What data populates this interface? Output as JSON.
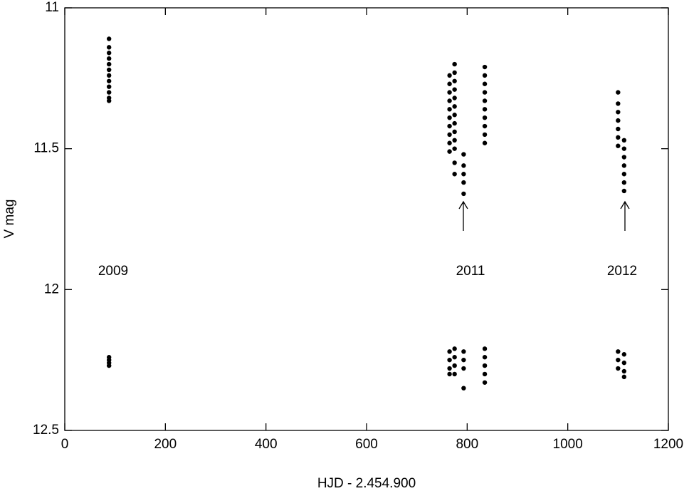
{
  "chart_data": {
    "type": "scatter",
    "x_label": "HJD - 2.454.900",
    "y_label": "V mag",
    "xlim": [
      0,
      1200
    ],
    "ylim": [
      11,
      12.5
    ],
    "y_inverted": true,
    "xticks": [
      0,
      200,
      400,
      600,
      800,
      1000,
      1200
    ],
    "yticks": [
      11,
      {
        "value": 11.5,
        "label": "11.5"
      },
      12,
      {
        "value": 12.5,
        "label": "12.5"
      }
    ],
    "annotations": [
      "2009",
      "2011",
      "2012"
    ],
    "series": [
      {
        "color": "#000000",
        "x": [
          88,
          88,
          88,
          88,
          88,
          88,
          88,
          88,
          88,
          88,
          88,
          88,
          88,
          88,
          88,
          88,
          765,
          765,
          765,
          765,
          765,
          765,
          765,
          765,
          765,
          765,
          775,
          775,
          775,
          775,
          775,
          775,
          775,
          775,
          775,
          775,
          775,
          775,
          775,
          793,
          793,
          793,
          793,
          793,
          835,
          835,
          835,
          835,
          835,
          835,
          835,
          835,
          835,
          835,
          1100,
          1100,
          1100,
          1100,
          1100,
          1100,
          1100,
          1112,
          1112,
          1112,
          1112,
          1112,
          1112,
          1112,
          765,
          765,
          765,
          765,
          775,
          775,
          775,
          775,
          793,
          793,
          793,
          793,
          835,
          835,
          835,
          835,
          835,
          1100,
          1100,
          1100,
          1112,
          1112,
          1112,
          1112
        ],
        "y": [
          11.11,
          11.14,
          11.16,
          11.18,
          11.2,
          11.22,
          11.24,
          11.26,
          11.28,
          11.3,
          11.32,
          11.33,
          12.24,
          12.25,
          12.26,
          12.27,
          11.24,
          11.27,
          11.3,
          11.33,
          11.36,
          11.39,
          11.42,
          11.45,
          11.48,
          11.51,
          11.2,
          11.23,
          11.26,
          11.29,
          11.32,
          11.35,
          11.38,
          11.41,
          11.44,
          11.47,
          11.5,
          11.55,
          11.59,
          11.52,
          11.56,
          11.59,
          11.62,
          11.66,
          11.21,
          11.24,
          11.27,
          11.3,
          11.33,
          11.36,
          11.39,
          11.42,
          11.45,
          11.48,
          11.3,
          11.34,
          11.37,
          11.4,
          11.43,
          11.46,
          11.49,
          11.47,
          11.5,
          11.53,
          11.56,
          11.59,
          11.62,
          11.65,
          12.22,
          12.25,
          12.28,
          12.3,
          12.21,
          12.24,
          12.27,
          12.3,
          12.22,
          12.25,
          12.28,
          12.35,
          12.21,
          12.24,
          12.27,
          12.3,
          12.33,
          12.22,
          12.25,
          12.28,
          12.23,
          12.26,
          12.29,
          12.31
        ]
      }
    ]
  }
}
